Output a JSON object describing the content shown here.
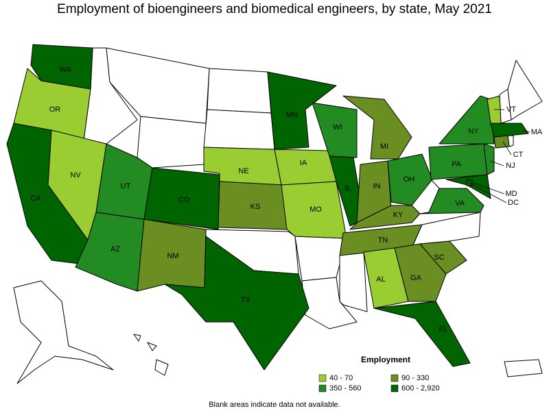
{
  "title": "Employment of bioengineers and biomedical engineers, by state, May 2021",
  "states": [
    {
      "label": "WA",
      "color": "#006400"
    },
    {
      "label": "OR",
      "color": "#9acd32"
    },
    {
      "label": "CA",
      "color": "#006400"
    },
    {
      "label": "NV",
      "color": "#9acd32"
    },
    {
      "label": "UT",
      "color": "#228b22"
    },
    {
      "label": "AZ",
      "color": "#228b22"
    },
    {
      "label": "CO",
      "color": "#006400"
    },
    {
      "label": "NM",
      "color": "#6b8e23"
    },
    {
      "label": "NE",
      "color": "#9acd32"
    },
    {
      "label": "KS",
      "color": "#6b8e23"
    },
    {
      "label": "TX",
      "color": "#006400"
    },
    {
      "label": "MN",
      "color": "#006400"
    },
    {
      "label": "IA",
      "color": "#9acd32"
    },
    {
      "label": "MO",
      "color": "#9acd32"
    },
    {
      "label": "WI",
      "color": "#228b22"
    },
    {
      "label": "IL",
      "color": "#006400"
    },
    {
      "label": "MI",
      "color": "#6b8e23"
    },
    {
      "label": "IN",
      "color": "#6b8e23"
    },
    {
      "label": "OH",
      "color": "#228b22"
    },
    {
      "label": "KY",
      "color": "#6b8e23"
    },
    {
      "label": "TN",
      "color": "#6b8e23"
    },
    {
      "label": "AL",
      "color": "#9acd32"
    },
    {
      "label": "GA",
      "color": "#6b8e23"
    },
    {
      "label": "FL",
      "color": "#006400"
    },
    {
      "label": "SC",
      "color": "#6b8e23"
    },
    {
      "label": "VA",
      "color": "#228b22"
    },
    {
      "label": "PA",
      "color": "#228b22"
    },
    {
      "label": "NY",
      "color": "#228b22"
    },
    {
      "label": "NJ",
      "color": "#228b22"
    },
    {
      "label": "MD",
      "color": "#006400"
    },
    {
      "label": "DC",
      "color": "#006400"
    },
    {
      "label": "VT",
      "color": "#9acd32"
    },
    {
      "label": "CT",
      "color": "#6b8e23"
    },
    {
      "label": "MA",
      "color": "#006400"
    }
  ],
  "legend": {
    "title": "Employment",
    "items": [
      {
        "label": "40 - 70",
        "color": "#9acd32"
      },
      {
        "label": "90 - 330",
        "color": "#6b8e23"
      },
      {
        "label": "350 - 560",
        "color": "#228b22"
      },
      {
        "label": "600 - 2,920",
        "color": "#006400"
      }
    ]
  },
  "footnote": "Blank areas indicate data not available."
}
